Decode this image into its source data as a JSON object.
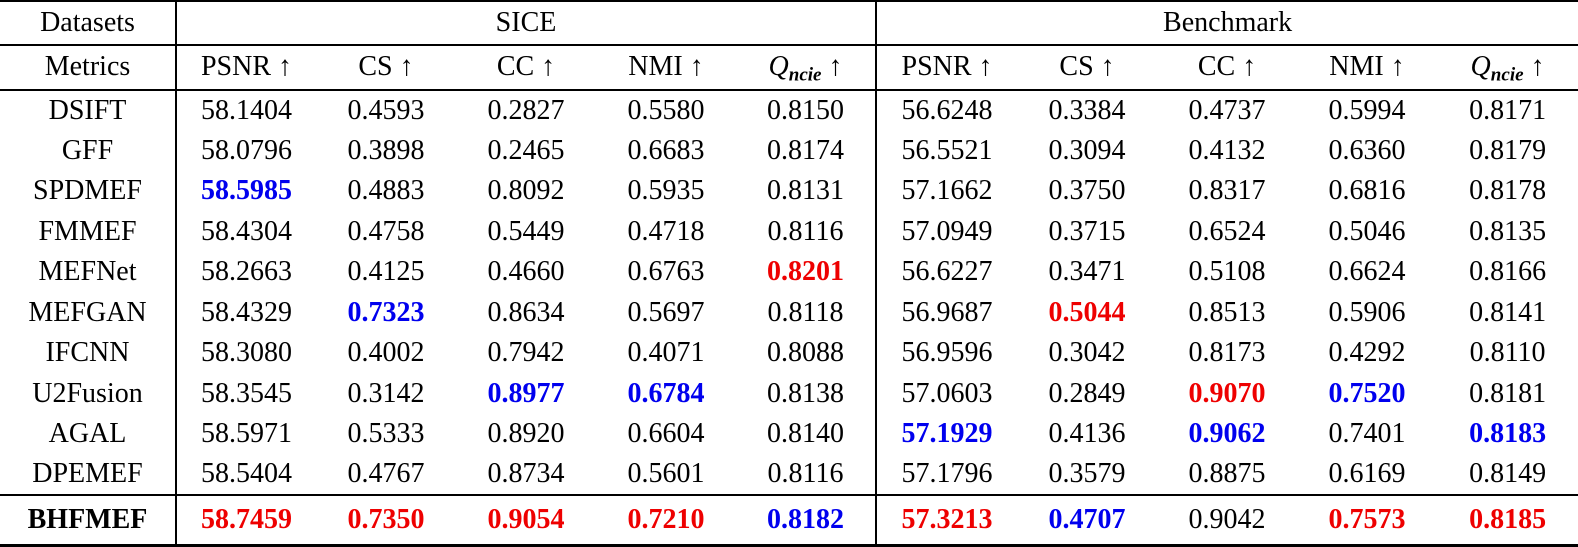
{
  "colors": {
    "best_value": "#ee0000",
    "second_best_value": "#0000ee",
    "text": "#000000",
    "background": "#ffffff",
    "rule": "#000000"
  },
  "header": {
    "datasets_label": "Datasets",
    "metrics_label": "Metrics",
    "groups": [
      {
        "label": "SICE"
      },
      {
        "label": "Benchmark"
      }
    ],
    "metrics": [
      {
        "name": "PSNR",
        "sub": "",
        "arrow": "↑",
        "italic": false
      },
      {
        "name": "CS",
        "sub": "",
        "arrow": "↑",
        "italic": false
      },
      {
        "name": "CC",
        "sub": "",
        "arrow": "↑",
        "italic": false
      },
      {
        "name": "NMI",
        "sub": "",
        "arrow": "↑",
        "italic": false
      },
      {
        "name": "Q",
        "sub": "ncie",
        "arrow": "↑",
        "italic": true
      }
    ]
  },
  "legend_note": {
    "best_style": "red bold = best",
    "second_style": "blue bold = second best"
  },
  "rows": [
    {
      "method": "DSIFT",
      "bold": false,
      "cells": [
        {
          "v": "58.1404",
          "s": "n"
        },
        {
          "v": "0.4593",
          "s": "n"
        },
        {
          "v": "0.2827",
          "s": "n"
        },
        {
          "v": "0.5580",
          "s": "n"
        },
        {
          "v": "0.8150",
          "s": "n"
        },
        {
          "v": "56.6248",
          "s": "n"
        },
        {
          "v": "0.3384",
          "s": "n"
        },
        {
          "v": "0.4737",
          "s": "n"
        },
        {
          "v": "0.5994",
          "s": "n"
        },
        {
          "v": "0.8171",
          "s": "n"
        }
      ]
    },
    {
      "method": "GFF",
      "bold": false,
      "cells": [
        {
          "v": "58.0796",
          "s": "n"
        },
        {
          "v": "0.3898",
          "s": "n"
        },
        {
          "v": "0.2465",
          "s": "n"
        },
        {
          "v": "0.6683",
          "s": "n"
        },
        {
          "v": "0.8174",
          "s": "n"
        },
        {
          "v": "56.5521",
          "s": "n"
        },
        {
          "v": "0.3094",
          "s": "n"
        },
        {
          "v": "0.4132",
          "s": "n"
        },
        {
          "v": "0.6360",
          "s": "n"
        },
        {
          "v": "0.8179",
          "s": "n"
        }
      ]
    },
    {
      "method": "SPDMEF",
      "bold": false,
      "cells": [
        {
          "v": "58.5985",
          "s": "b"
        },
        {
          "v": "0.4883",
          "s": "n"
        },
        {
          "v": "0.8092",
          "s": "n"
        },
        {
          "v": "0.5935",
          "s": "n"
        },
        {
          "v": "0.8131",
          "s": "n"
        },
        {
          "v": "57.1662",
          "s": "n"
        },
        {
          "v": "0.3750",
          "s": "n"
        },
        {
          "v": "0.8317",
          "s": "n"
        },
        {
          "v": "0.6816",
          "s": "n"
        },
        {
          "v": "0.8178",
          "s": "n"
        }
      ]
    },
    {
      "method": "FMMEF",
      "bold": false,
      "cells": [
        {
          "v": "58.4304",
          "s": "n"
        },
        {
          "v": "0.4758",
          "s": "n"
        },
        {
          "v": "0.5449",
          "s": "n"
        },
        {
          "v": "0.4718",
          "s": "n"
        },
        {
          "v": "0.8116",
          "s": "n"
        },
        {
          "v": "57.0949",
          "s": "n"
        },
        {
          "v": "0.3715",
          "s": "n"
        },
        {
          "v": "0.6524",
          "s": "n"
        },
        {
          "v": "0.5046",
          "s": "n"
        },
        {
          "v": "0.8135",
          "s": "n"
        }
      ]
    },
    {
      "method": "MEFNet",
      "bold": false,
      "cells": [
        {
          "v": "58.2663",
          "s": "n"
        },
        {
          "v": "0.4125",
          "s": "n"
        },
        {
          "v": "0.4660",
          "s": "n"
        },
        {
          "v": "0.6763",
          "s": "n"
        },
        {
          "v": "0.8201",
          "s": "r"
        },
        {
          "v": "56.6227",
          "s": "n"
        },
        {
          "v": "0.3471",
          "s": "n"
        },
        {
          "v": "0.5108",
          "s": "n"
        },
        {
          "v": "0.6624",
          "s": "n"
        },
        {
          "v": "0.8166",
          "s": "n"
        }
      ]
    },
    {
      "method": "MEFGAN",
      "bold": false,
      "cells": [
        {
          "v": "58.4329",
          "s": "n"
        },
        {
          "v": "0.7323",
          "s": "b"
        },
        {
          "v": "0.8634",
          "s": "n"
        },
        {
          "v": "0.5697",
          "s": "n"
        },
        {
          "v": "0.8118",
          "s": "n"
        },
        {
          "v": "56.9687",
          "s": "n"
        },
        {
          "v": "0.5044",
          "s": "r"
        },
        {
          "v": "0.8513",
          "s": "n"
        },
        {
          "v": "0.5906",
          "s": "n"
        },
        {
          "v": "0.8141",
          "s": "n"
        }
      ]
    },
    {
      "method": "IFCNN",
      "bold": false,
      "cells": [
        {
          "v": "58.3080",
          "s": "n"
        },
        {
          "v": "0.4002",
          "s": "n"
        },
        {
          "v": "0.7942",
          "s": "n"
        },
        {
          "v": "0.4071",
          "s": "n"
        },
        {
          "v": "0.8088",
          "s": "n"
        },
        {
          "v": "56.9596",
          "s": "n"
        },
        {
          "v": "0.3042",
          "s": "n"
        },
        {
          "v": "0.8173",
          "s": "n"
        },
        {
          "v": "0.4292",
          "s": "n"
        },
        {
          "v": "0.8110",
          "s": "n"
        }
      ]
    },
    {
      "method": "U2Fusion",
      "bold": false,
      "cells": [
        {
          "v": "58.3545",
          "s": "n"
        },
        {
          "v": "0.3142",
          "s": "n"
        },
        {
          "v": "0.8977",
          "s": "b"
        },
        {
          "v": "0.6784",
          "s": "b"
        },
        {
          "v": "0.8138",
          "s": "n"
        },
        {
          "v": "57.0603",
          "s": "n"
        },
        {
          "v": "0.2849",
          "s": "n"
        },
        {
          "v": "0.9070",
          "s": "r"
        },
        {
          "v": "0.7520",
          "s": "b"
        },
        {
          "v": "0.8181",
          "s": "n"
        }
      ]
    },
    {
      "method": "AGAL",
      "bold": false,
      "cells": [
        {
          "v": "58.5971",
          "s": "n"
        },
        {
          "v": "0.5333",
          "s": "n"
        },
        {
          "v": "0.8920",
          "s": "n"
        },
        {
          "v": "0.6604",
          "s": "n"
        },
        {
          "v": "0.8140",
          "s": "n"
        },
        {
          "v": "57.1929",
          "s": "b"
        },
        {
          "v": "0.4136",
          "s": "n"
        },
        {
          "v": "0.9062",
          "s": "b"
        },
        {
          "v": "0.7401",
          "s": "n"
        },
        {
          "v": "0.8183",
          "s": "b"
        }
      ]
    },
    {
      "method": "DPEMEF",
      "bold": false,
      "cells": [
        {
          "v": "58.5404",
          "s": "n"
        },
        {
          "v": "0.4767",
          "s": "n"
        },
        {
          "v": "0.8734",
          "s": "n"
        },
        {
          "v": "0.5601",
          "s": "n"
        },
        {
          "v": "0.8116",
          "s": "n"
        },
        {
          "v": "57.1796",
          "s": "n"
        },
        {
          "v": "0.3579",
          "s": "n"
        },
        {
          "v": "0.8875",
          "s": "n"
        },
        {
          "v": "0.6169",
          "s": "n"
        },
        {
          "v": "0.8149",
          "s": "n"
        }
      ]
    },
    {
      "method": "BHFMEF",
      "bold": true,
      "cells": [
        {
          "v": "58.7459",
          "s": "r"
        },
        {
          "v": "0.7350",
          "s": "r"
        },
        {
          "v": "0.9054",
          "s": "r"
        },
        {
          "v": "0.7210",
          "s": "r"
        },
        {
          "v": "0.8182",
          "s": "b"
        },
        {
          "v": "57.3213",
          "s": "r"
        },
        {
          "v": "0.4707",
          "s": "b"
        },
        {
          "v": "0.9042",
          "s": "n"
        },
        {
          "v": "0.7573",
          "s": "r"
        },
        {
          "v": "0.8185",
          "s": "r"
        }
      ]
    }
  ]
}
